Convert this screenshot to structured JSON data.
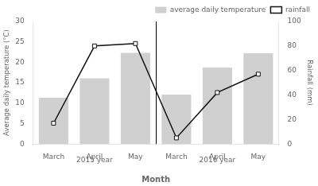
{
  "chart_data": {
    "type": "bar",
    "categories": [
      "March",
      "April",
      "May",
      "March",
      "April",
      "May"
    ],
    "annotations": [
      "2015 year",
      "2016 year"
    ],
    "xlabel": "Month",
    "ylabel": "Average daily temperature (°C)",
    "y2label": "Rainfall (mm)",
    "series": [
      {
        "name": "average daily temperature",
        "type": "bar",
        "color": "#d0d0d0",
        "values": [
          11.3,
          16.1,
          22.3,
          12.1,
          18.7,
          22.2
        ]
      },
      {
        "name": "rainfall",
        "type": "line",
        "color": "#111111",
        "marker": "square",
        "axis": "y2",
        "values": [
          17.0,
          80.0,
          82.0,
          5.0,
          42.0,
          57.0
        ]
      }
    ],
    "ylim": [
      0,
      30
    ],
    "yticks": [
      0,
      5,
      10,
      15,
      20,
      25,
      30
    ],
    "y2lim": [
      0,
      100
    ],
    "y2ticks": [
      0,
      20,
      40,
      60,
      80,
      100
    ],
    "grid": false,
    "legend": "upper right"
  }
}
